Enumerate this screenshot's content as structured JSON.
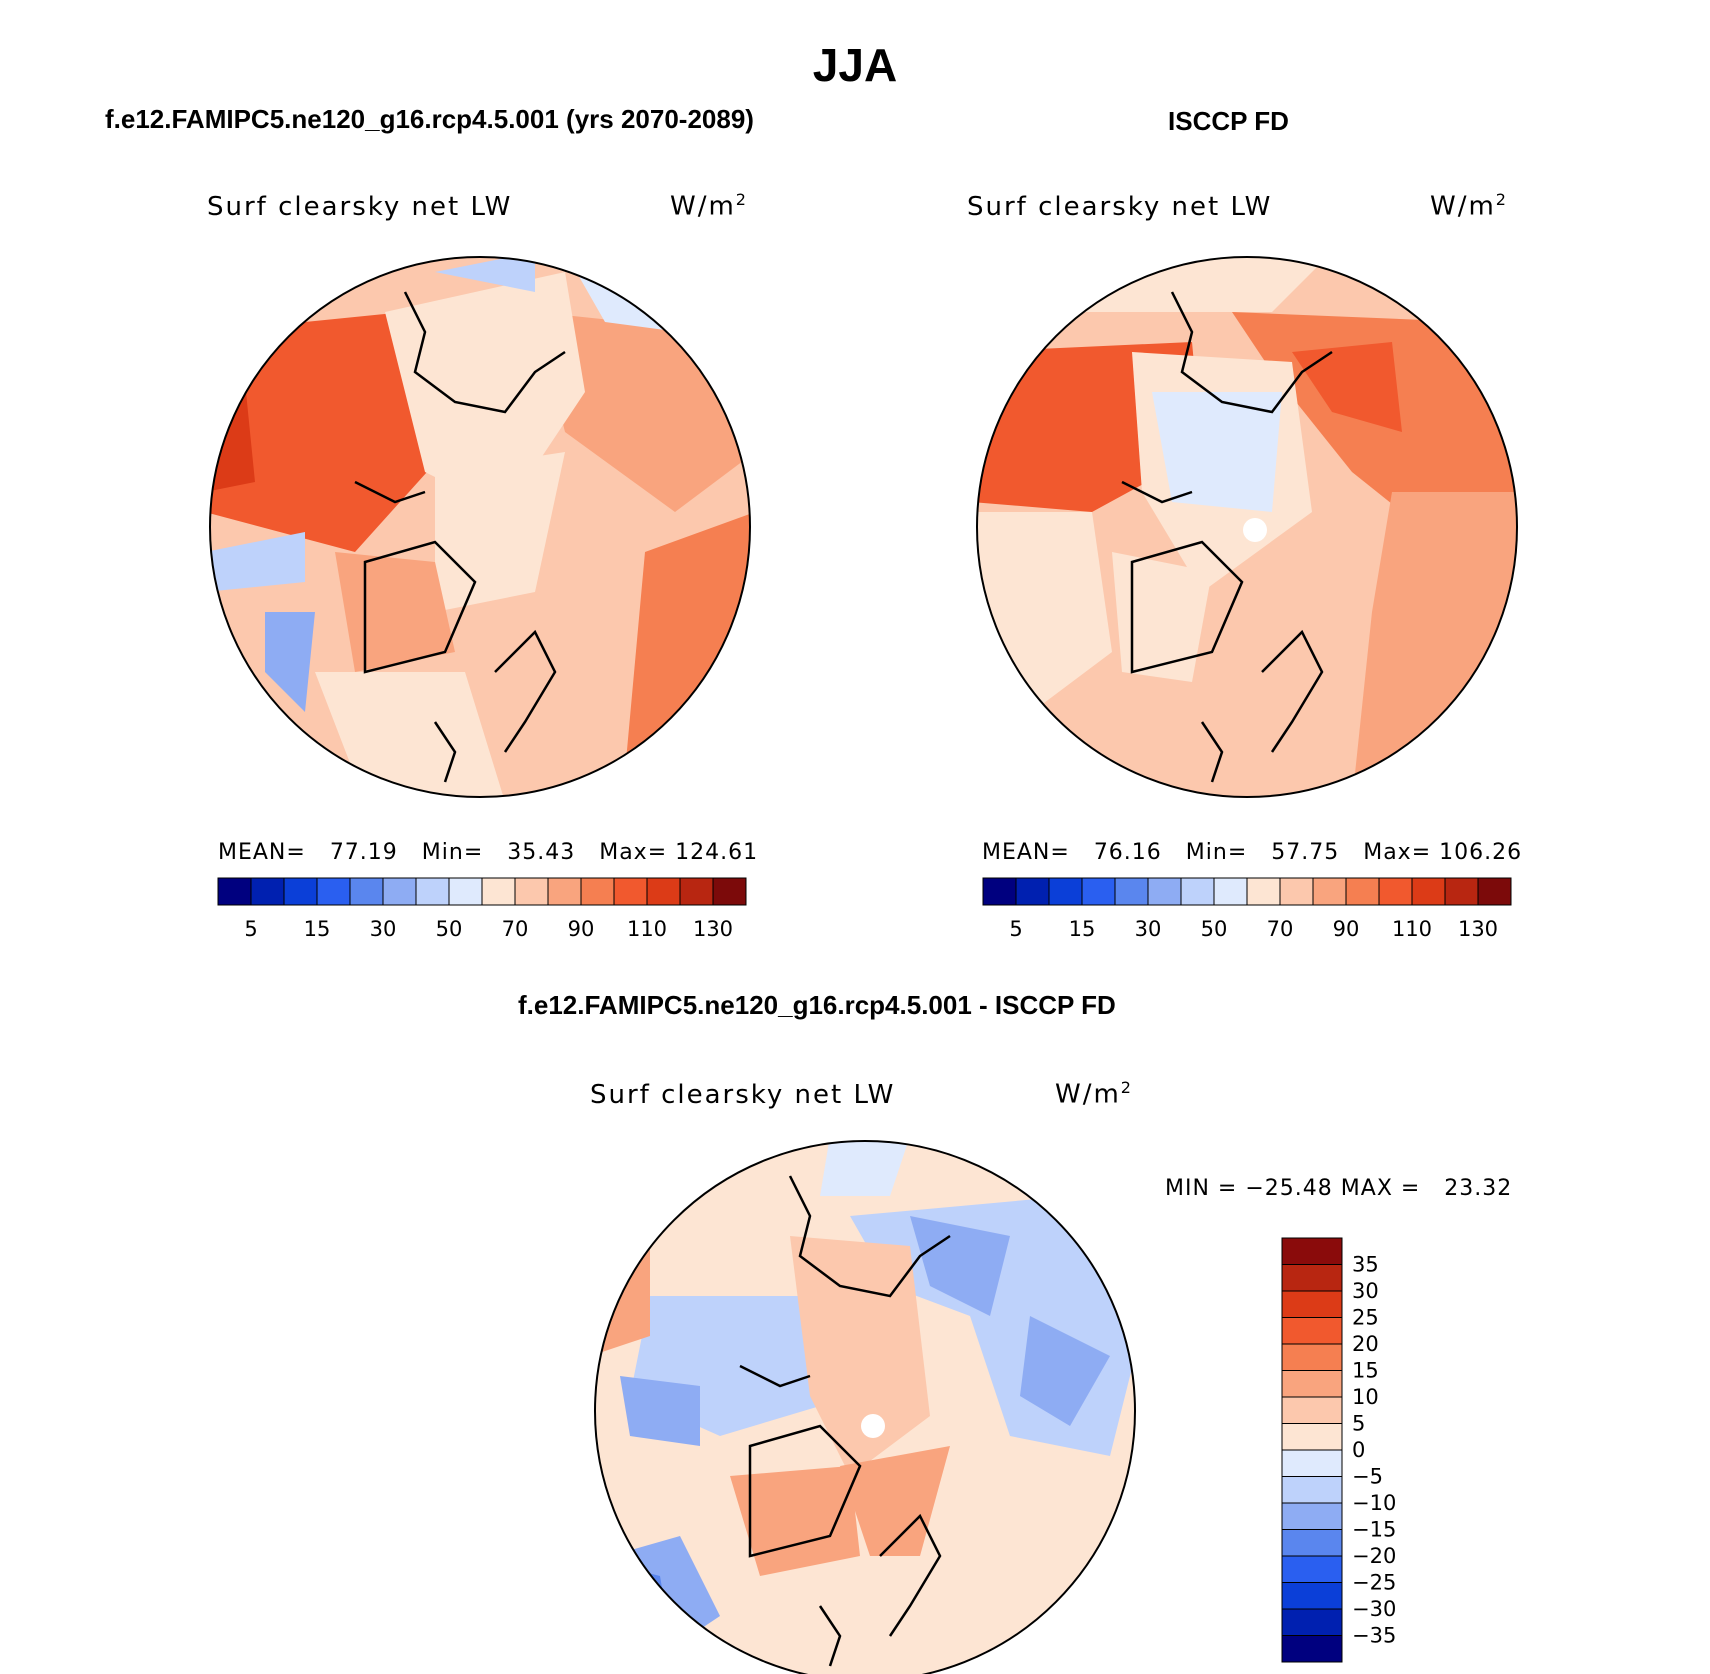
{
  "season": "JJA",
  "panels": [
    {
      "case_title": "f.e12.FAMIPC5.ne120_g16.rcp4.5.001 (yrs 2070-2089)",
      "variable": "Surf clearsky net LW",
      "units": "W/m",
      "units_exp": "2",
      "mean_label": "MEAN=",
      "mean": "77.19",
      "min_label": "Min=",
      "min": "35.43",
      "max_label": "Max=",
      "max": "124.61"
    },
    {
      "case_title": "ISCCP FD",
      "variable": "Surf clearsky net LW",
      "units": "W/m",
      "units_exp": "2",
      "mean_label": "MEAN=",
      "mean": "76.16",
      "min_label": "Min=",
      "min": "57.75",
      "max_label": "Max=",
      "max": "106.26"
    }
  ],
  "abs_colorbar": {
    "colors": [
      "#00007f",
      "#0020b0",
      "#0b3fd8",
      "#2a5ff0",
      "#5a86ee",
      "#8eacf3",
      "#bed2fb",
      "#dfeafd",
      "#fde5d3",
      "#fcc8ad",
      "#f9a47e",
      "#f57f51",
      "#f1592e",
      "#dc3b17",
      "#b82611",
      "#7c0a0a"
    ],
    "labels": [
      "5",
      "15",
      "30",
      "50",
      "70",
      "90",
      "110",
      "130"
    ]
  },
  "diff_panel": {
    "case_title": "f.e12.FAMIPC5.ne120_g16.rcp4.5.001 - ISCCP FD",
    "variable": "Surf clearsky net LW",
    "units": "W/m",
    "units_exp": "2",
    "min_label": "MIN =",
    "min": "−25.48",
    "max_label": "MAX =",
    "max": "23.32"
  },
  "diff_colorbar": {
    "colors": [
      "#8a0b0b",
      "#b82611",
      "#dc3b17",
      "#f1592e",
      "#f57f51",
      "#f9a47e",
      "#fcc8ad",
      "#fde5d3",
      "#dfeafd",
      "#bed2fb",
      "#8eacf3",
      "#5a86ee",
      "#2a5ff0",
      "#0b3fd8",
      "#0020b0",
      "#00007f"
    ],
    "labels": [
      "35",
      "30",
      "25",
      "20",
      "15",
      "10",
      "5",
      "0",
      "−5",
      "−10",
      "−15",
      "−20",
      "−25",
      "−30",
      "−35"
    ]
  }
}
